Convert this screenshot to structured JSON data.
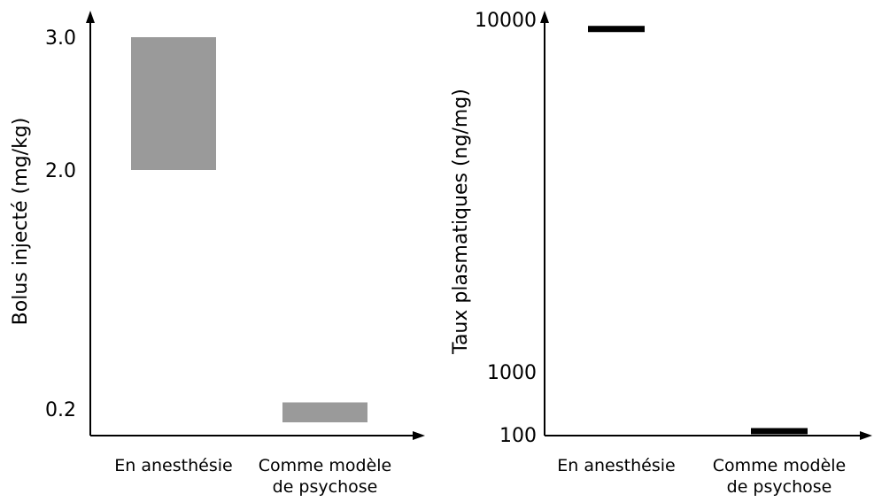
{
  "chart_data": [
    {
      "type": "bar",
      "subtype": "floating-range",
      "ylabel": "Bolus injecté (mg/kg)",
      "xlabel": "",
      "categories": [
        [
          "En anesthésie"
        ],
        [
          "Comme modèle",
          "de psychose"
        ]
      ],
      "y_scale": "linear",
      "y_ticks": [
        "3.0",
        "2.0",
        "0.2"
      ],
      "y_tick_values": [
        3.0,
        2.0,
        0.2
      ],
      "ylim": [
        0.0,
        3.2
      ],
      "ranges": [
        {
          "low": 2.0,
          "high": 3.0
        },
        {
          "low": 0.1,
          "high": 0.25
        }
      ],
      "bar_color": "#9a9a9a",
      "grid": false,
      "legend": "none"
    },
    {
      "type": "bar",
      "subtype": "level-marker",
      "ylabel": "Taux plasmatiques (ng/mg)",
      "xlabel": "",
      "categories": [
        [
          "En anesthésie"
        ],
        [
          "Comme modèle",
          "de psychose"
        ]
      ],
      "y_scale": "log",
      "y_ticks": [
        "10000",
        "1000",
        "100"
      ],
      "y_tick_values": [
        10000,
        1000,
        100
      ],
      "ylim": [
        100,
        10500
      ],
      "values": [
        9000,
        110
      ],
      "marker_color": "#000000",
      "grid": false,
      "legend": "none"
    }
  ]
}
